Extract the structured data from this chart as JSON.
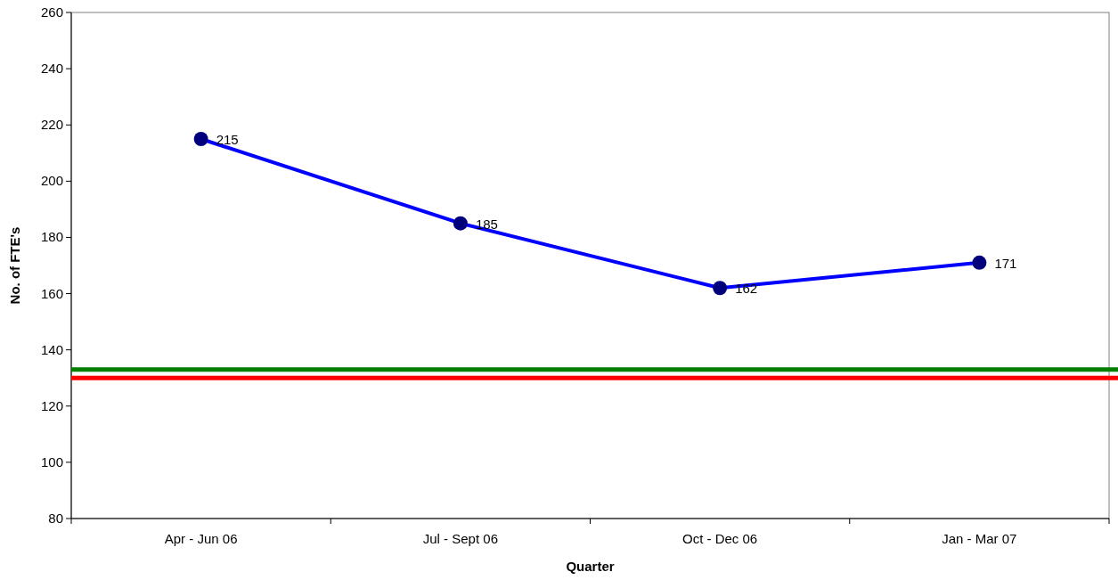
{
  "chart_data": {
    "type": "line",
    "xlabel": "Quarter",
    "ylabel": "No. of FTE's",
    "categories": [
      "Apr - Jun 06",
      "Jul - Sept 06",
      "Oct - Dec 06",
      "Jan - Mar 07"
    ],
    "series": [
      {
        "color": "#0000ff",
        "values": [
          215,
          185,
          162,
          171
        ]
      }
    ],
    "ylim": [
      80,
      260
    ],
    "yticks": [
      80,
      100,
      120,
      140,
      160,
      180,
      200,
      220,
      240,
      260
    ],
    "marker": "circle",
    "data_labels": true,
    "grid": false,
    "ref_lines": [
      {
        "axis": "y",
        "value": 133,
        "color": "#008000"
      },
      {
        "axis": "y",
        "value": 130,
        "color": "#ff0000"
      }
    ]
  }
}
